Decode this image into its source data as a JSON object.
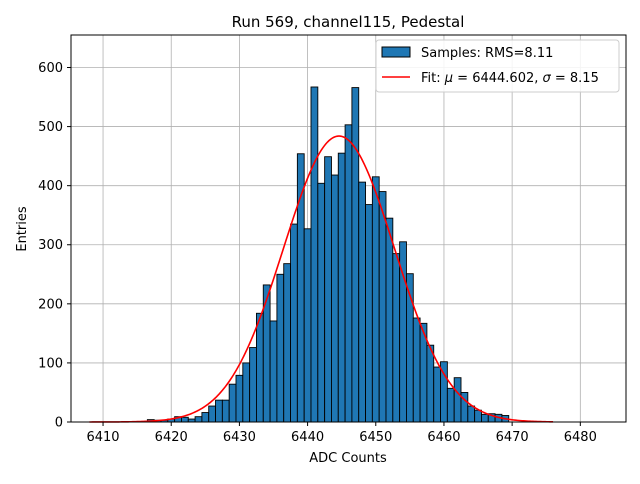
{
  "chart_data": {
    "type": "bar",
    "title": "Run 569, channel115, Pedestal",
    "xlabel": "ADC Counts",
    "ylabel": "Entries",
    "xlim": [
      6405.3,
      6486.7
    ],
    "ylim": [
      0,
      655
    ],
    "xticks": [
      6410,
      6420,
      6430,
      6440,
      6450,
      6460,
      6470,
      6480
    ],
    "yticks": [
      0,
      100,
      200,
      300,
      400,
      500,
      600
    ],
    "grid": true,
    "legend_position": "top-right",
    "bin_width": 1,
    "bins": [
      {
        "x": 6417,
        "count": 4
      },
      {
        "x": 6418,
        "count": 3
      },
      {
        "x": 6419,
        "count": 3
      },
      {
        "x": 6420,
        "count": 5
      },
      {
        "x": 6421,
        "count": 9
      },
      {
        "x": 6422,
        "count": 8
      },
      {
        "x": 6423,
        "count": 5
      },
      {
        "x": 6424,
        "count": 9
      },
      {
        "x": 6425,
        "count": 16
      },
      {
        "x": 6426,
        "count": 27
      },
      {
        "x": 6427,
        "count": 37
      },
      {
        "x": 6428,
        "count": 37
      },
      {
        "x": 6429,
        "count": 64
      },
      {
        "x": 6430,
        "count": 79
      },
      {
        "x": 6431,
        "count": 100
      },
      {
        "x": 6432,
        "count": 126
      },
      {
        "x": 6433,
        "count": 184
      },
      {
        "x": 6434,
        "count": 232
      },
      {
        "x": 6435,
        "count": 171
      },
      {
        "x": 6436,
        "count": 250
      },
      {
        "x": 6437,
        "count": 268
      },
      {
        "x": 6438,
        "count": 335
      },
      {
        "x": 6439,
        "count": 454
      },
      {
        "x": 6440,
        "count": 327
      },
      {
        "x": 6441,
        "count": 567
      },
      {
        "x": 6442,
        "count": 404
      },
      {
        "x": 6443,
        "count": 449
      },
      {
        "x": 6444,
        "count": 418
      },
      {
        "x": 6445,
        "count": 455
      },
      {
        "x": 6446,
        "count": 503
      },
      {
        "x": 6447,
        "count": 566
      },
      {
        "x": 6448,
        "count": 406
      },
      {
        "x": 6449,
        "count": 368
      },
      {
        "x": 6450,
        "count": 415
      },
      {
        "x": 6451,
        "count": 390
      },
      {
        "x": 6452,
        "count": 345
      },
      {
        "x": 6453,
        "count": 285
      },
      {
        "x": 6454,
        "count": 305
      },
      {
        "x": 6455,
        "count": 251
      },
      {
        "x": 6456,
        "count": 176
      },
      {
        "x": 6457,
        "count": 167
      },
      {
        "x": 6458,
        "count": 130
      },
      {
        "x": 6459,
        "count": 93
      },
      {
        "x": 6460,
        "count": 102
      },
      {
        "x": 6461,
        "count": 57
      },
      {
        "x": 6462,
        "count": 75
      },
      {
        "x": 6463,
        "count": 50
      },
      {
        "x": 6464,
        "count": 27
      },
      {
        "x": 6465,
        "count": 20
      },
      {
        "x": 6466,
        "count": 13
      },
      {
        "x": 6467,
        "count": 14
      },
      {
        "x": 6468,
        "count": 13
      },
      {
        "x": 6469,
        "count": 11
      }
    ],
    "fit": {
      "mu": 6444.602,
      "sigma": 8.15,
      "amplitude": 484,
      "range": [
        6408,
        6476
      ]
    },
    "colors": {
      "bar": "#1f77b4",
      "bar_edge": "#000000",
      "fit": "#ff0000",
      "grid": "#b0b0b0"
    },
    "legend": {
      "samples": "Samples: RMS=8.11",
      "fit_prefix": "Fit: ",
      "mu_symbol": "μ",
      "mu_text": " = 6444.602, ",
      "sigma_symbol": "σ",
      "sigma_text": " = 8.15"
    }
  }
}
